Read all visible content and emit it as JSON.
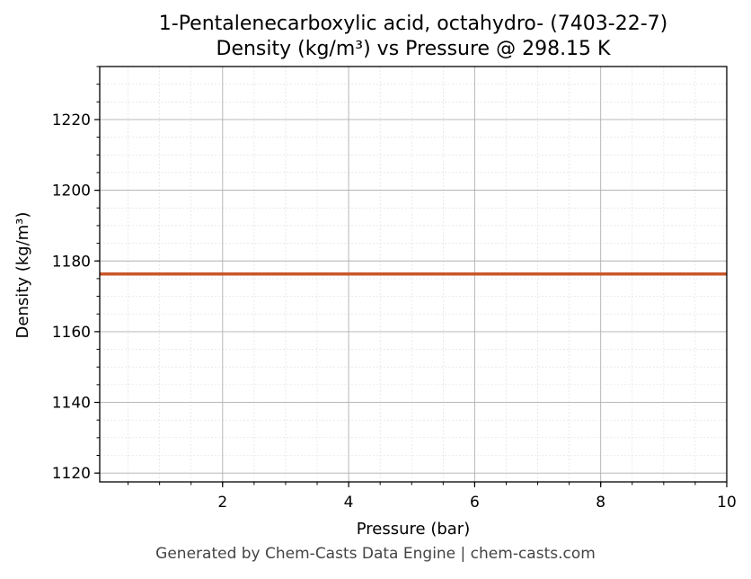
{
  "chart_data": {
    "type": "line",
    "title": "1-Pentalenecarboxylic acid, octahydro- (7403-22-7)",
    "subtitle": "Density (kg/m³) vs Pressure @ 298.15 K",
    "xlabel": "Pressure (bar)",
    "ylabel": "Density (kg/m³)",
    "xlim": [
      0.05,
      10
    ],
    "ylim": [
      1117.5,
      1235
    ],
    "x_ticks": [
      2,
      4,
      6,
      8,
      10
    ],
    "y_ticks": [
      1120,
      1140,
      1160,
      1180,
      1200,
      1220
    ],
    "grid": true,
    "series": [
      {
        "color": "#c8562a",
        "x": [
          0.05,
          1,
          2,
          3,
          4,
          5,
          6,
          7,
          8,
          9,
          10
        ],
        "y": [
          1176.3,
          1176.3,
          1176.3,
          1176.3,
          1176.3,
          1176.3,
          1176.3,
          1176.3,
          1176.3,
          1176.3,
          1176.3
        ]
      }
    ]
  },
  "footer": "Generated by Chem-Casts Data Engine | chem-casts.com"
}
